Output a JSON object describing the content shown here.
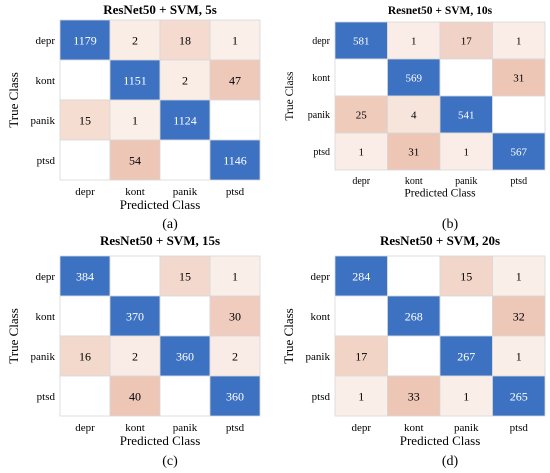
{
  "colors": {
    "diag": "#3d72c2",
    "off_max": "#edc6b6",
    "off_min": "#fdf6f2",
    "empty": "#ffffff",
    "grid": "#d7d7d7"
  },
  "chart_data": [
    {
      "type": "heatmap",
      "title": "ResNet50 + SVM, 5s",
      "caption": "(a)",
      "xlabel": "Predicted Class",
      "ylabel": "True Class",
      "x": [
        "depr",
        "kont",
        "panik",
        "ptsd"
      ],
      "y": [
        "depr",
        "kont",
        "panik",
        "ptsd"
      ],
      "z": [
        [
          1179,
          2,
          18,
          1
        ],
        [
          null,
          1151,
          2,
          47
        ],
        [
          15,
          1,
          1124,
          null
        ],
        [
          null,
          54,
          null,
          1146
        ]
      ]
    },
    {
      "type": "heatmap",
      "title": "Resnet50 + SVM, 10s",
      "caption": "(b)",
      "xlabel": "Predicted Class",
      "ylabel": "True Class",
      "x": [
        "depr",
        "kont",
        "panik",
        "ptsd"
      ],
      "y": [
        "depr",
        "kont",
        "panik",
        "ptsd"
      ],
      "z": [
        [
          581,
          1,
          17,
          1
        ],
        [
          null,
          569,
          null,
          31
        ],
        [
          25,
          4,
          541,
          null
        ],
        [
          1,
          31,
          1,
          567
        ]
      ]
    },
    {
      "type": "heatmap",
      "title": "ResNet50 + SVM, 15s",
      "caption": "(c)",
      "xlabel": "Predicted Class",
      "ylabel": "True Class",
      "x": [
        "depr",
        "kont",
        "panik",
        "ptsd"
      ],
      "y": [
        "depr",
        "kont",
        "panik",
        "ptsd"
      ],
      "z": [
        [
          384,
          null,
          15,
          1
        ],
        [
          null,
          370,
          null,
          30
        ],
        [
          16,
          2,
          360,
          2
        ],
        [
          null,
          40,
          null,
          360
        ]
      ]
    },
    {
      "type": "heatmap",
      "title": "ResNet50 + SVM, 20s",
      "caption": "(d)",
      "xlabel": "Predicted Class",
      "ylabel": "True Class",
      "x": [
        "depr",
        "kont",
        "panik",
        "ptsd"
      ],
      "y": [
        "depr",
        "kont",
        "panik",
        "ptsd"
      ],
      "z": [
        [
          284,
          null,
          15,
          1
        ],
        [
          null,
          268,
          null,
          32
        ],
        [
          17,
          null,
          267,
          1
        ],
        [
          1,
          33,
          1,
          265
        ]
      ]
    }
  ]
}
